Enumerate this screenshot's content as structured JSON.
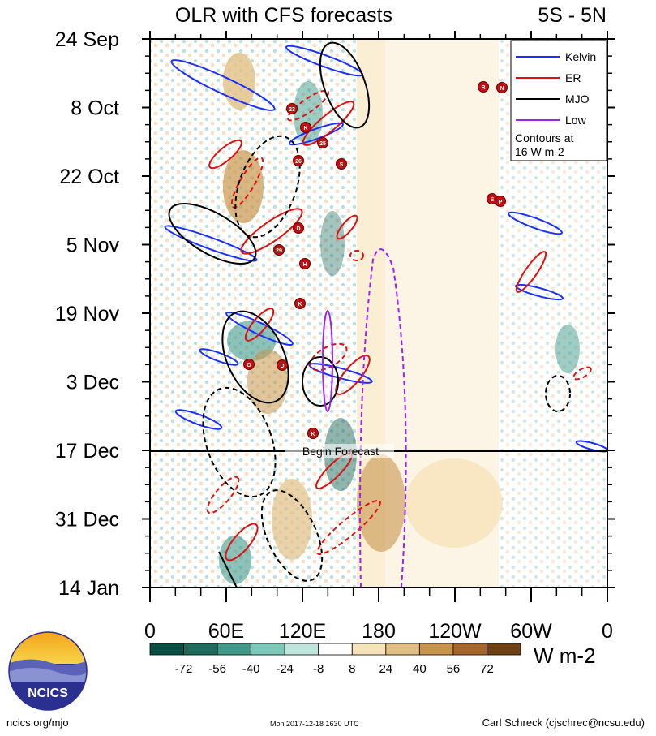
{
  "chart_data": {
    "type": "heatmap",
    "title": "OLR with CFS forecasts",
    "region": "5S - 5N",
    "y_tick_labels": [
      "24 Sep",
      "8 Oct",
      "22 Oct",
      "5 Nov",
      "19 Nov",
      "3 Dec",
      "17 Dec",
      "31 Dec",
      "14 Jan"
    ],
    "x_tick_labels": [
      "0",
      "60E",
      "120E",
      "180",
      "120W",
      "60W",
      "0"
    ],
    "x_range_deg_east": [
      0,
      360
    ],
    "y_range": [
      "2017-09-24",
      "2018-01-14"
    ],
    "forecast_start": "2017-12-17",
    "forecast_label": "Begin Forecast",
    "colorbar": {
      "unit": "W m-2",
      "tick_labels": [
        "-72",
        "-56",
        "-40",
        "-24",
        "-8",
        "8",
        "24",
        "40",
        "56",
        "72"
      ],
      "colors": [
        "#0a4f45",
        "#1f6b5e",
        "#3f9a8c",
        "#7cc9bb",
        "#bfe6dd",
        "#ffffff",
        "#f6e3b9",
        "#e1c086",
        "#c8954c",
        "#a6672a",
        "#6f4214"
      ]
    },
    "legend": {
      "placement": "top-right",
      "entries": [
        {
          "label": "Kelvin",
          "color": "#1a2eff"
        },
        {
          "label": "ER",
          "color": "#e01010"
        },
        {
          "label": "MJO",
          "color": "#000000"
        },
        {
          "label": "Low",
          "color": "#a020f0"
        }
      ],
      "note_line1": "Contours at",
      "note_line2": "16 W m-2"
    },
    "tropical_cyclones": [
      "R",
      "N",
      "23",
      "K",
      "25",
      "26",
      "S",
      "S",
      "P",
      "D",
      "29",
      "H",
      "K",
      "O",
      "D",
      "K"
    ]
  },
  "logo": {
    "text": "NCICS"
  },
  "footer": {
    "left": "ncics.org/mjo",
    "middle": "Mon 2017-12-18 1630 UTC",
    "right": "Carl Schreck (cjschrec@ncsu.edu)"
  }
}
